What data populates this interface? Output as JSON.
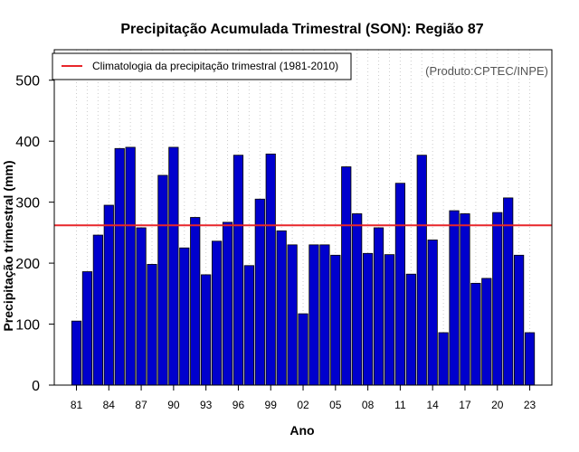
{
  "chart_data": {
    "type": "bar",
    "title": "Precipitação Acumulada Trimestral (SON): Região 87",
    "xlabel": "Ano",
    "ylabel": "Precipitação trimestral (mm)",
    "credit": "(Produto:CPTEC/INPE)",
    "legend": {
      "label": "Climatologia da precipitação trimestral (1981-2010)",
      "placement": "top-left"
    },
    "ylim": [
      0,
      550
    ],
    "yticks": [
      0,
      100,
      200,
      300,
      400,
      500
    ],
    "xtick_labels": [
      "81",
      "84",
      "87",
      "90",
      "93",
      "96",
      "99",
      "02",
      "05",
      "08",
      "11",
      "14",
      "17",
      "20",
      "23"
    ],
    "categories": [
      "1981",
      "1982",
      "1983",
      "1984",
      "1985",
      "1986",
      "1987",
      "1988",
      "1989",
      "1990",
      "1991",
      "1992",
      "1993",
      "1994",
      "1995",
      "1996",
      "1997",
      "1998",
      "1999",
      "2000",
      "2001",
      "2002",
      "2003",
      "2004",
      "2005",
      "2006",
      "2007",
      "2008",
      "2009",
      "2010",
      "2011",
      "2012",
      "2013",
      "2014",
      "2015",
      "2016",
      "2017",
      "2018",
      "2019",
      "2020",
      "2021",
      "2022",
      "2023"
    ],
    "values": [
      105,
      186,
      246,
      295,
      388,
      390,
      258,
      198,
      344,
      390,
      225,
      275,
      181,
      236,
      267,
      377,
      196,
      305,
      379,
      253,
      230,
      117,
      230,
      230,
      213,
      358,
      281,
      216,
      258,
      214,
      331,
      182,
      377,
      238,
      86,
      286,
      281,
      167,
      175,
      283,
      307,
      213,
      86
    ],
    "climatology": 262,
    "grid": "vertical dotted",
    "colors": {
      "bar_fill": "#0000cd",
      "bar_stroke": "#000000",
      "climatology_line": "#e8262a",
      "grid": "#cccccc"
    }
  }
}
